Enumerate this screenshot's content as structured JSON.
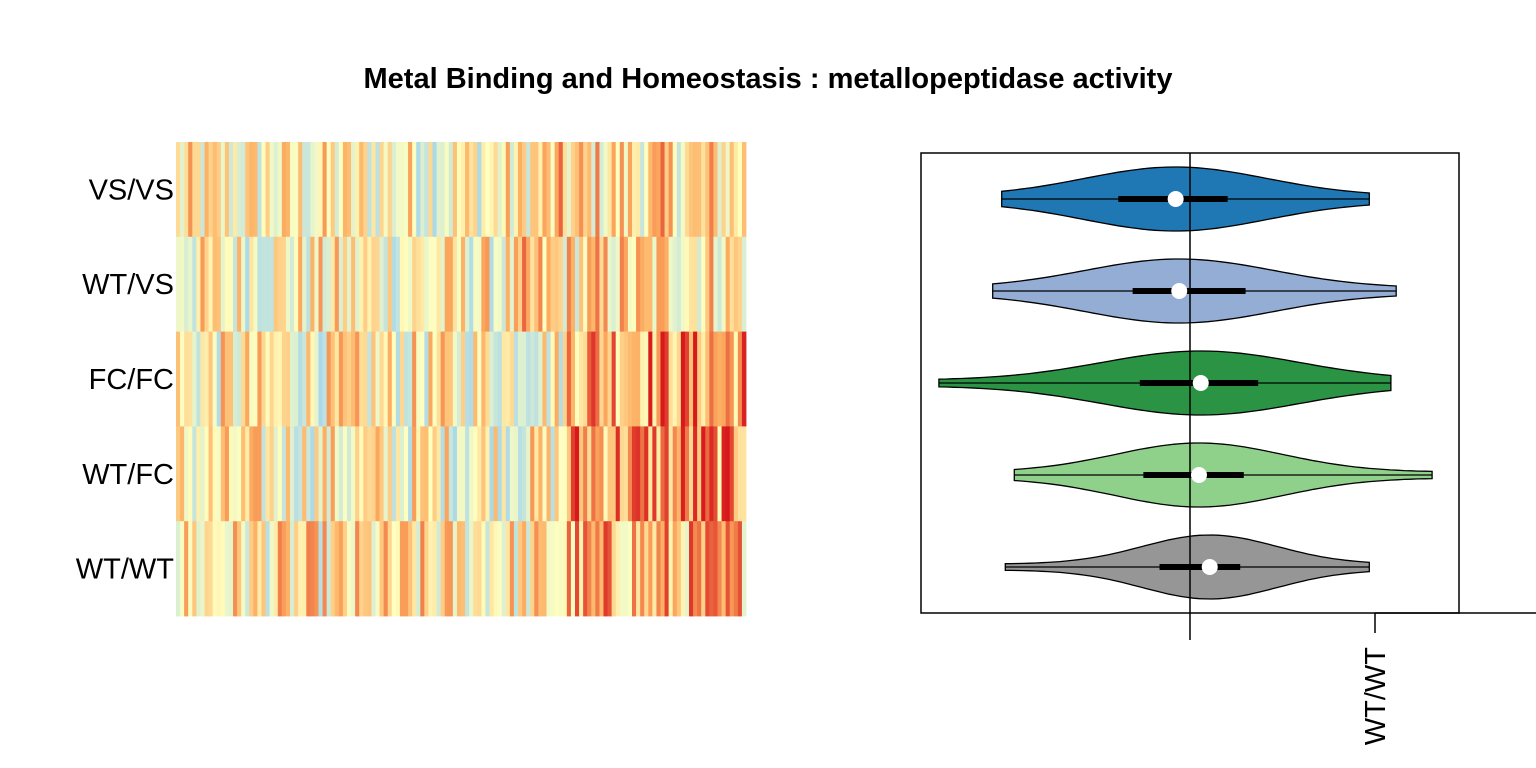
{
  "chart_data": {
    "title": "Metal Binding and Homeostasis : metallopeptidase activity",
    "panels": [
      {
        "type": "heatmap",
        "rows": [
          "VS/VS",
          "WT/VS",
          "FC/FC",
          "WT/FC",
          "WT/WT"
        ],
        "n_columns": 140,
        "palette": [
          "#2c7bb6",
          "#abd9e9",
          "#ffffbf",
          "#fdae61",
          "#d7191c"
        ],
        "values": [],
        "seed_row_means": [
          0.0,
          0.1,
          0.45,
          0.5,
          0.3
        ]
      },
      {
        "type": "violin",
        "orientation": "horizontal",
        "groups": [
          "VS/VS",
          "WT/VS",
          "FC/FC",
          "WT/FC",
          "WT/WT"
        ],
        "colors": [
          "#1f78b4",
          "#94add5",
          "#2a9444",
          "#8fd18a",
          "#969696"
        ],
        "reference_line": 0,
        "xlim": [
          -1.5,
          1.5
        ],
        "stats": [
          {
            "group": "VS/VS",
            "min": -1.05,
            "q1": -0.4,
            "median": -0.08,
            "q3": 0.21,
            "max": 1.0
          },
          {
            "group": "WT/VS",
            "min": -1.1,
            "q1": -0.32,
            "median": -0.06,
            "q3": 0.31,
            "max": 1.15
          },
          {
            "group": "FC/FC",
            "min": -1.4,
            "q1": -0.28,
            "median": 0.06,
            "q3": 0.38,
            "max": 1.12
          },
          {
            "group": "WT/FC",
            "min": -0.98,
            "q1": -0.26,
            "median": 0.05,
            "q3": 0.3,
            "max": 1.35
          },
          {
            "group": "WT/WT",
            "min": -1.03,
            "q1": -0.17,
            "median": 0.11,
            "q3": 0.28,
            "max": 1.0
          }
        ],
        "x_tick_labels": [
          "WT/WT"
        ]
      }
    ]
  }
}
